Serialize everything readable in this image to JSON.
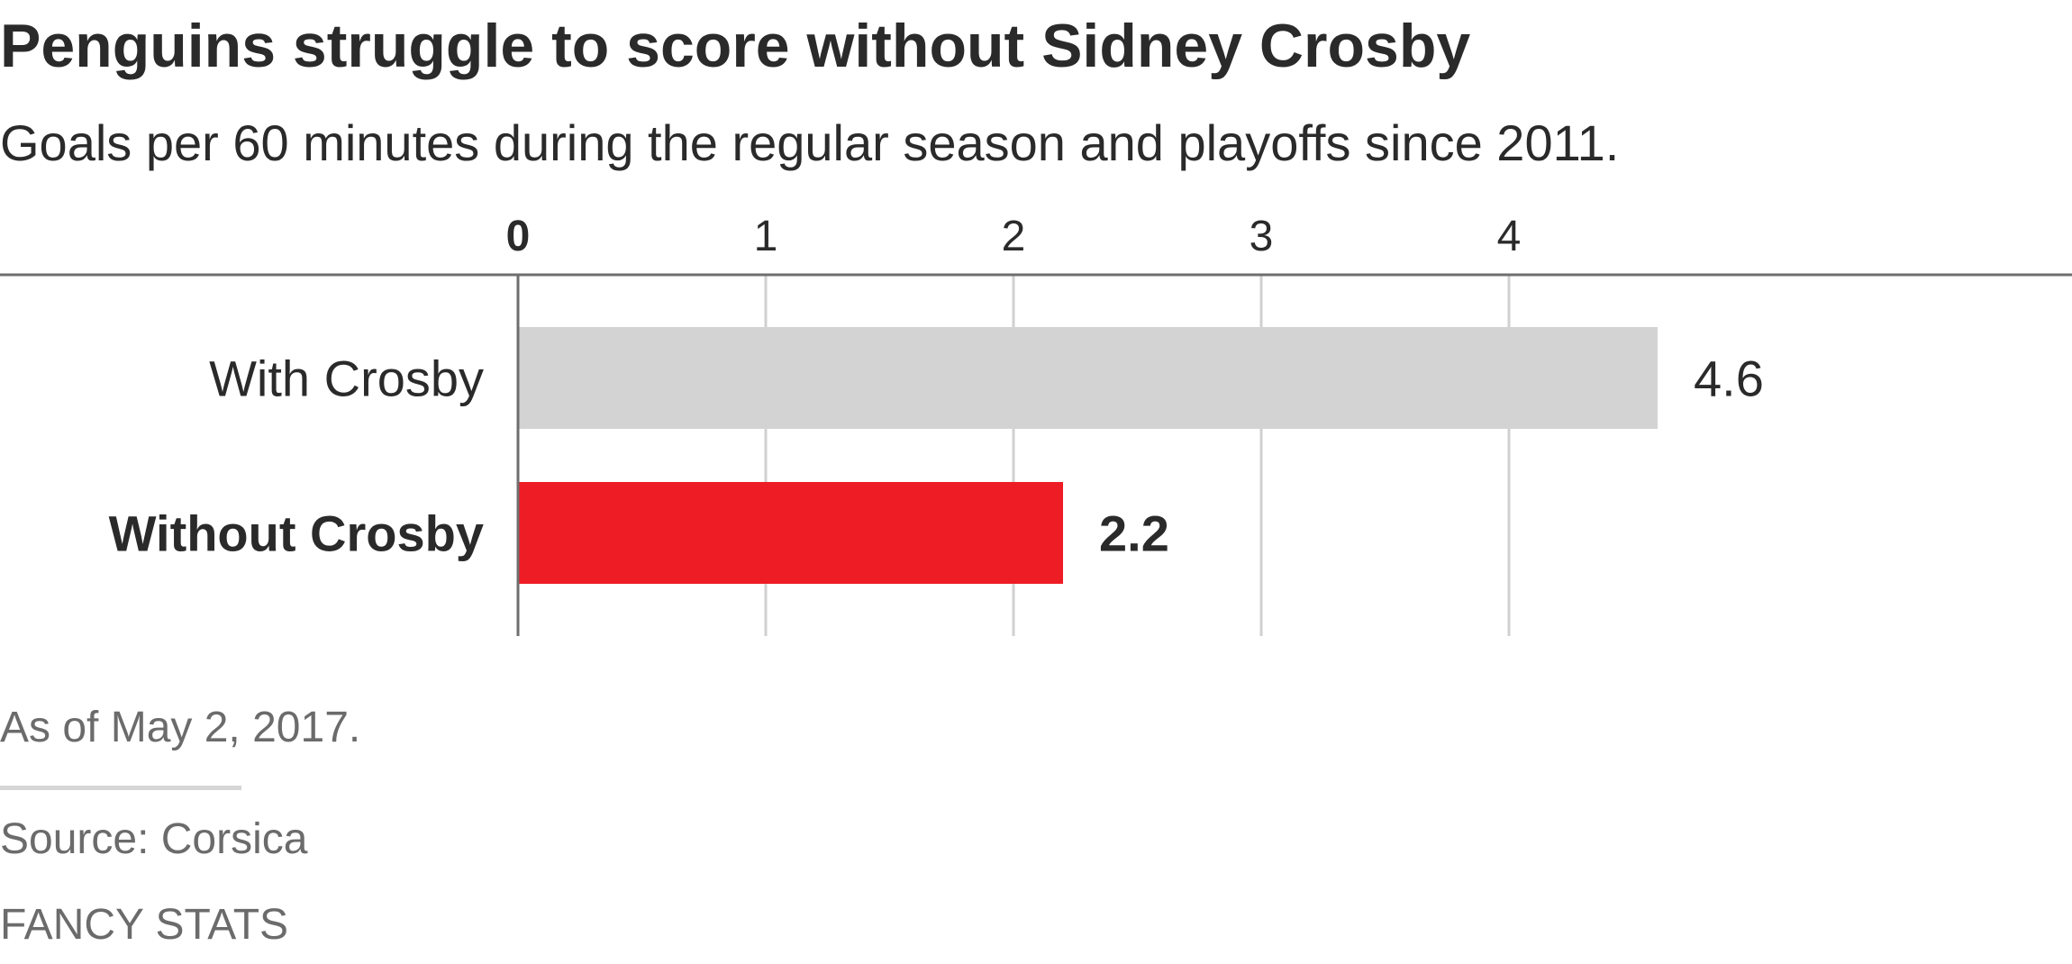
{
  "header": {
    "title": "Penguins struggle to score without Sidney Crosby",
    "subtitle": "Goals per 60 minutes during the regular season and playoffs since 2011."
  },
  "chart_data": {
    "type": "bar",
    "orientation": "horizontal",
    "categories": [
      "With Crosby",
      "Without Crosby"
    ],
    "values": [
      4.6,
      2.2
    ],
    "value_labels": [
      "4.6",
      "2.2"
    ],
    "highlight": [
      false,
      true
    ],
    "colors": [
      "#d3d3d3",
      "#ee1c25"
    ],
    "xlim": [
      0,
      5
    ],
    "ticks": [
      0,
      1,
      2,
      3,
      4
    ],
    "tick_labels": [
      "0",
      "1",
      "2",
      "3",
      "4"
    ],
    "grid": true,
    "title": "Penguins struggle to score without Sidney Crosby",
    "subtitle": "Goals per 60 minutes during the regular season and playoffs since 2011.",
    "xlabel": "",
    "ylabel": ""
  },
  "footer": {
    "note": "As of May 2, 2017.",
    "source": "Source: Corsica",
    "credit": "FANCY STATS"
  }
}
